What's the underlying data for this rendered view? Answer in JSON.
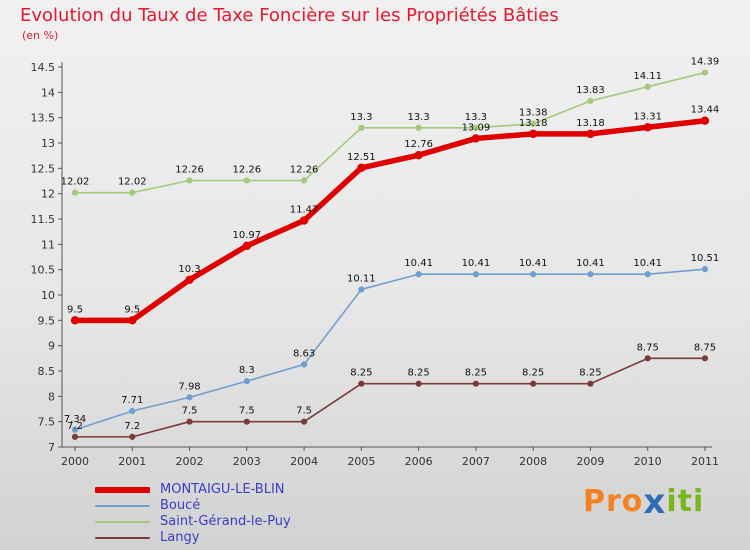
{
  "title": "Evolution du Taux de Taxe Foncière sur les Propriétés Bâties",
  "subtitle": "(en %)",
  "colors": {
    "title_red": "#e8192c",
    "legend_text_blue": "#3b3bc8",
    "axis_gray": "#555555"
  },
  "chart_data": {
    "type": "line",
    "title": "Evolution du Taux de Taxe Foncière sur les Propriétés Bâties",
    "ylabel": "en %",
    "categories": [
      "2000",
      "2001",
      "2002",
      "2003",
      "2004",
      "2005",
      "2006",
      "2007",
      "2008",
      "2009",
      "2010",
      "2011"
    ],
    "series": [
      {
        "name": "MONTAIGU-LE-BLIN",
        "color": "#e10000",
        "line_width": 5.5,
        "values": [
          9.5,
          9.5,
          10.3,
          10.97,
          11.47,
          12.51,
          12.76,
          13.09,
          13.18,
          13.18,
          13.31,
          13.44
        ]
      },
      {
        "name": "Boucé",
        "color": "#6f9fd0",
        "line_width": 1.6,
        "values": [
          7.34,
          7.71,
          7.98,
          8.3,
          8.63,
          10.11,
          10.41,
          10.41,
          10.41,
          10.41,
          10.41,
          10.51
        ]
      },
      {
        "name": "Saint-Gérand-le-Puy",
        "color": "#a4c979",
        "line_width": 1.6,
        "values": [
          12.02,
          12.02,
          12.26,
          12.26,
          12.26,
          13.3,
          13.3,
          13.3,
          13.38,
          13.83,
          14.11,
          14.39
        ]
      },
      {
        "name": "Langy",
        "color": "#7a3a3a",
        "line_width": 1.6,
        "values": [
          7.2,
          7.2,
          7.5,
          7.5,
          7.5,
          8.25,
          8.25,
          8.25,
          8.25,
          8.25,
          8.75,
          8.75
        ]
      }
    ],
    "ylim": [
      7,
      14.5
    ],
    "ytick_step": 0.5,
    "grid": false,
    "legend_position": "bottom-left",
    "point_labels": true
  },
  "logo": {
    "parts": [
      {
        "text": "Pro",
        "color": "#f58220"
      },
      {
        "text": "x",
        "color": "#2e6db4"
      },
      {
        "text": "iti",
        "color": "#7ab51d"
      }
    ]
  }
}
